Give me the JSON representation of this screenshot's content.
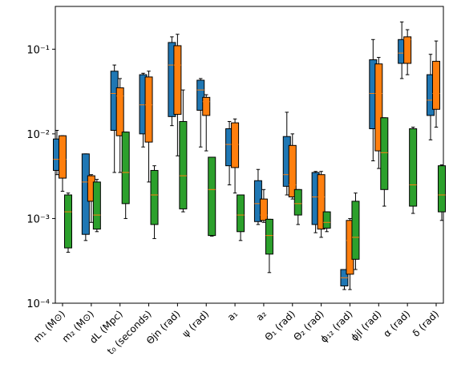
{
  "chart_data": {
    "type": "box",
    "log_y": true,
    "median_color": "#ff7f0e",
    "categories": [
      "m₁ (M⊙)",
      "m₂ (M⊙)",
      "dL (Mpc)",
      "t₀ (seconds)",
      "Θjn (rad)",
      "ψ (rad)",
      "a₁",
      "a₂",
      "Θ₁ (rad)",
      "Θ₂ (rad)",
      "ϕ₁₂ (rad)",
      "ϕjl (rad)",
      "α (rad)",
      "δ (rad)"
    ],
    "ylim": [
      0.0001,
      0.32
    ],
    "yticks": [
      {
        "value": 0.0001,
        "label": "10⁻⁴"
      },
      {
        "value": 0.001,
        "label": "10⁻³"
      },
      {
        "value": 0.01,
        "label": "10⁻²"
      },
      {
        "value": 0.1,
        "label": "10⁻¹"
      }
    ],
    "series": [
      {
        "color": "#1f77b4",
        "values": [
          [
            0.0033,
            0.0037,
            0.005,
            0.0087,
            0.011
          ],
          [
            0.00055,
            0.00065,
            0.0027,
            0.0058,
            0.0058
          ],
          [
            0.0035,
            0.011,
            0.03,
            0.055,
            0.065
          ],
          [
            0.007,
            0.01,
            0.022,
            0.05,
            0.052
          ],
          [
            0.0125,
            0.016,
            0.065,
            0.12,
            0.14
          ],
          [
            0.007,
            0.019,
            0.033,
            0.043,
            0.045
          ],
          [
            0.0025,
            0.0042,
            0.0075,
            0.0115,
            0.014
          ],
          [
            0.00085,
            0.00092,
            0.0015,
            0.0028,
            0.0038
          ],
          [
            0.0019,
            0.0024,
            0.0033,
            0.0093,
            0.018
          ],
          [
            0.00068,
            0.00085,
            0.0018,
            0.0035,
            0.0036
          ],
          [
            0.000145,
            0.00016,
            0.0002,
            0.00025,
            0.00025
          ],
          [
            0.0048,
            0.0115,
            0.03,
            0.075,
            0.13
          ],
          [
            0.045,
            0.068,
            0.09,
            0.13,
            0.21
          ],
          [
            0.0085,
            0.0165,
            0.025,
            0.05,
            0.087
          ]
        ]
      },
      {
        "color": "#ff7f0e",
        "values": [
          [
            0.0021,
            0.003,
            0.005,
            0.0095,
            0.0095
          ],
          [
            0.0009,
            0.0016,
            0.0027,
            0.0032,
            0.0033
          ],
          [
            0.0035,
            0.0095,
            0.028,
            0.035,
            0.045
          ],
          [
            0.0027,
            0.008,
            0.022,
            0.047,
            0.055
          ],
          [
            0.0055,
            0.017,
            0.065,
            0.11,
            0.15
          ],
          [
            0.0063,
            0.0165,
            0.024,
            0.027,
            0.029
          ],
          [
            0.002,
            0.004,
            0.0075,
            0.0135,
            0.015
          ],
          [
            0.0009,
            0.00095,
            0.0011,
            0.0017,
            0.0022
          ],
          [
            0.0017,
            0.0018,
            0.0025,
            0.0073,
            0.01
          ],
          [
            0.0006,
            0.00075,
            0.0018,
            0.0033,
            0.0036
          ],
          [
            0.000145,
            0.00022,
            0.00055,
            0.00095,
            0.001
          ],
          [
            0.0039,
            0.0063,
            0.03,
            0.067,
            0.08
          ],
          [
            0.05,
            0.068,
            0.13,
            0.14,
            0.17
          ],
          [
            0.012,
            0.0195,
            0.03,
            0.072,
            0.125
          ]
        ]
      },
      {
        "color": "#2ca02c",
        "values": [
          [
            0.0004,
            0.00045,
            0.0012,
            0.0019,
            0.002
          ],
          [
            0.0007,
            0.00075,
            0.0011,
            0.0027,
            0.0029
          ],
          [
            0.001,
            0.0015,
            0.0035,
            0.0105,
            0.0105
          ],
          [
            0.00058,
            0.00085,
            0.0019,
            0.0037,
            0.0042
          ],
          [
            0.0012,
            0.0013,
            0.0032,
            0.014,
            0.033
          ],
          [
            0.00062,
            0.00063,
            0.0022,
            0.0053,
            0.0053
          ],
          [
            0.00055,
            0.0007,
            0.0011,
            0.0019,
            0.0019
          ],
          [
            0.00023,
            0.00038,
            0.00063,
            0.00098,
            0.00098
          ],
          [
            0.00085,
            0.0011,
            0.0015,
            0.0022,
            0.0022
          ],
          [
            0.0007,
            0.00077,
            0.0009,
            0.0012,
            0.0012
          ],
          [
            0.00025,
            0.00033,
            0.0006,
            0.0016,
            0.002
          ],
          [
            0.0014,
            0.0022,
            0.006,
            0.0155,
            0.0155
          ],
          [
            0.00115,
            0.0014,
            0.0025,
            0.0115,
            0.012
          ],
          [
            0.00095,
            0.0012,
            0.0019,
            0.0042,
            0.0043
          ]
        ]
      }
    ]
  }
}
